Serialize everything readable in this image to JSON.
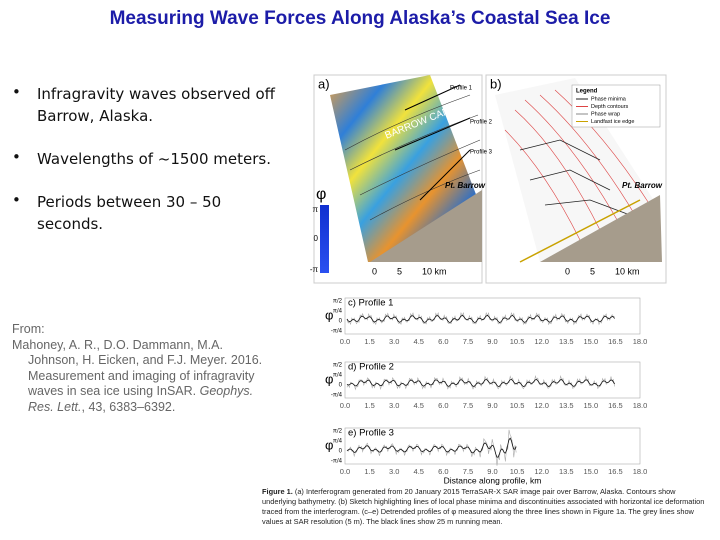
{
  "header": {
    "title": "Measuring Wave Forces Along Alaska’s Coastal Sea Ice"
  },
  "bullets": [
    "Infragravity waves observed off Barrow, Alaska.",
    "Wavelengths of ~1500 meters.",
    "Periods between 30 – 50 seconds."
  ],
  "citation": {
    "label": "From:",
    "lines": [
      [
        {
          "text": "Mahoney, A. R., D.O. Dammann, M.A.",
          "italic": false
        }
      ],
      [
        {
          "text": "Johnson, H. Eicken, and F.J. Meyer. 2016.",
          "italic": false
        }
      ],
      [
        {
          "text": "Measurement and imaging of infragravity",
          "italic": false
        }
      ],
      [
        {
          "text": "waves in sea ice using InSAR. ",
          "italic": false
        },
        {
          "text": "Geophys.",
          "italic": true
        }
      ],
      [
        {
          "text": "Res. Lett.",
          "italic": true
        },
        {
          "text": ", 43, 6383–6392.",
          "italic": false
        }
      ]
    ]
  },
  "figure": {
    "panel_a": {
      "label": "a)",
      "canyon": "BARROW CANYON",
      "point": "Pt. Barrow",
      "profiles": [
        "Profile 1",
        "Profile 2",
        "Profile 3"
      ],
      "scale": [
        "0",
        "5",
        "10 km"
      ]
    },
    "panel_b": {
      "label": "b)",
      "point": "Pt. Barrow",
      "legend": {
        "title": "Legend",
        "items": [
          "Phase minima",
          "Depth contours",
          "Phase wrap",
          "Landfast ice edge"
        ]
      },
      "scale": [
        "0",
        "5",
        "10 km"
      ]
    },
    "colorbar": {
      "symbol": "φ",
      "labels": [
        "π",
        "0",
        "-π"
      ]
    },
    "profiles": [
      {
        "title": "c) Profile 1",
        "ylabel": "φ",
        "yticks": [
          "π/2",
          "π/4",
          "0",
          "-π/4"
        ]
      },
      {
        "title": "d) Profile 2",
        "ylabel": "φ",
        "yticks": [
          "π/2",
          "π/4",
          "0",
          "-π/4"
        ]
      },
      {
        "title": "e) Profile 3",
        "ylabel": "φ",
        "yticks": [
          "π/2",
          "π/4",
          "0",
          "-π/4"
        ]
      }
    ],
    "xticks": [
      "0.0",
      "1.5",
      "3.0",
      "4.5",
      "6.0",
      "7.5",
      "9.0",
      "10.5",
      "12.0",
      "13.5",
      "15.0",
      "16.5",
      "18.0"
    ],
    "xlabel": "Distance along profile, km",
    "caption": {
      "label": "Figure 1.",
      "text": " (a) Interferogram generated from 20 January 2015 TerraSAR-X SAR image pair over Barrow, Alaska. Contours show underlying bathymetry. (b) Sketch highlighting lines of local phase minima and discontinuities associated with horizontal ice deformation traced from the interferogram. (c–e) Detrended profiles of φ measured along the three lines shown in Figure 1a. The grey lines show values at SAR resolution (5 m). The black lines show 25 m running mean."
    }
  }
}
